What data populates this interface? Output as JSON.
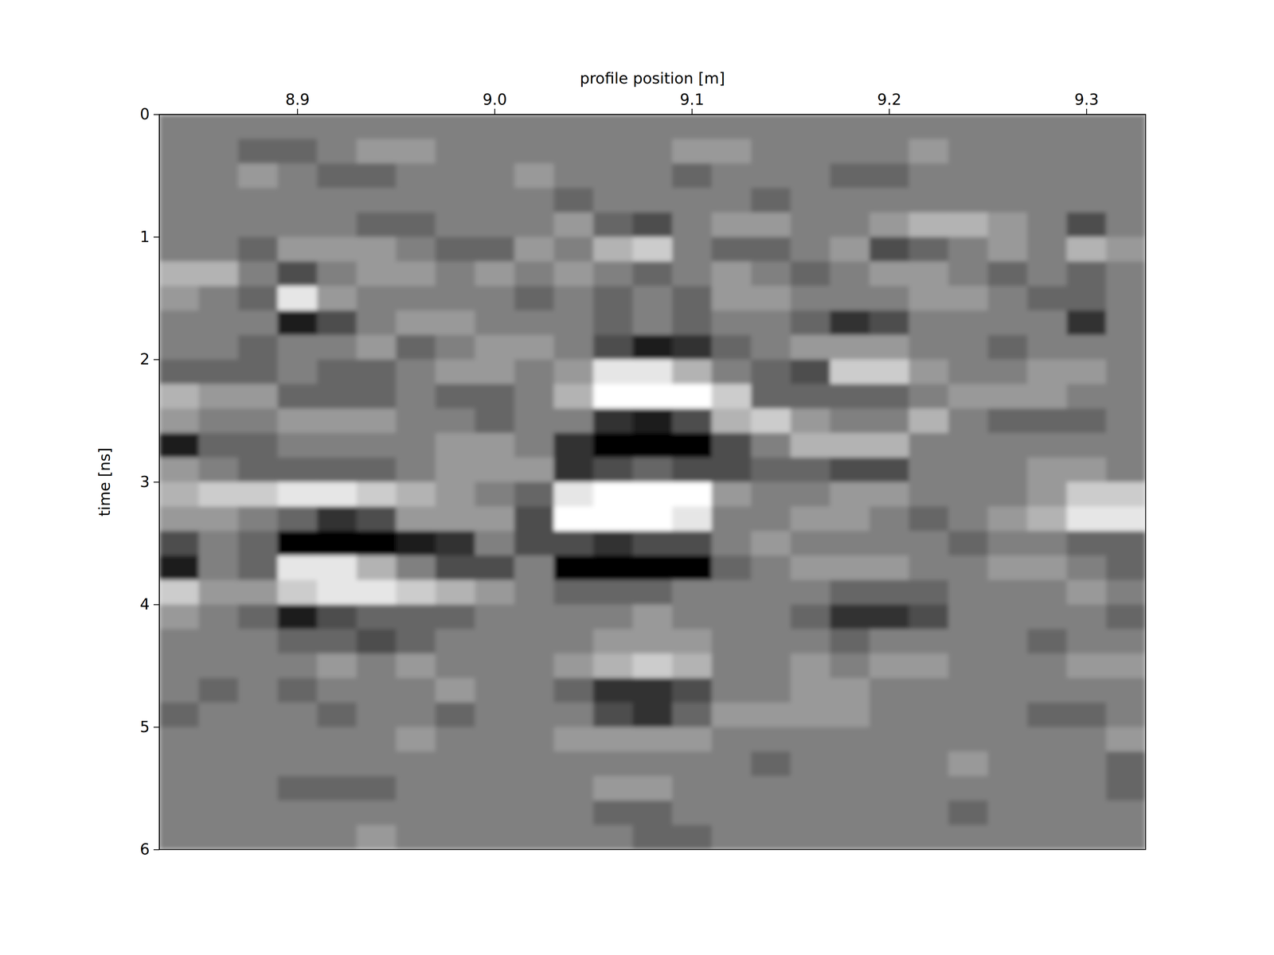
{
  "chart_data": {
    "type": "heatmap",
    "x_label": "profile position [m]",
    "y_label": "time [ns]",
    "xlim": [
      8.83,
      9.33
    ],
    "ylim": [
      0,
      6
    ],
    "xticks": [
      8.9,
      {
        "value": 9,
        "label": "9.0"
      },
      9.1,
      9.2,
      9.3
    ],
    "yticks": [
      0,
      1,
      2,
      3,
      4,
      5,
      6
    ],
    "zlim": [
      -5,
      5
    ],
    "x": [
      8.84,
      8.86,
      8.88,
      8.9,
      8.92,
      8.94,
      8.96,
      8.98,
      9.0,
      9.02,
      9.04,
      9.06,
      9.08,
      9.1,
      9.12,
      9.14,
      9.16,
      9.18,
      9.2,
      9.22,
      9.24,
      9.26,
      9.28,
      9.3,
      9.32
    ],
    "y": [
      0.1,
      0.3,
      0.5,
      0.7,
      0.9,
      1.1,
      1.3,
      1.5,
      1.7,
      1.9,
      2.1,
      2.3,
      2.5,
      2.7,
      2.9,
      3.1,
      3.3,
      3.5,
      3.7,
      3.9,
      4.1,
      4.3,
      4.5,
      4.7,
      4.9,
      5.1,
      5.3,
      5.5,
      5.7,
      5.9
    ],
    "cells": [
      [
        0,
        0,
        0,
        0,
        0,
        0,
        0,
        0,
        0,
        0,
        0,
        0,
        0,
        0,
        0,
        0,
        0,
        0,
        0,
        0,
        0,
        0,
        0,
        0,
        0
      ],
      [
        0,
        0,
        -1,
        -1,
        0,
        1,
        1,
        0,
        0,
        0,
        0,
        0,
        0,
        1,
        1,
        0,
        0,
        0,
        0,
        1,
        0,
        0,
        0,
        0,
        0
      ],
      [
        0,
        0,
        1,
        0,
        -1,
        -1,
        0,
        0,
        0,
        1,
        0,
        0,
        0,
        -1,
        0,
        0,
        0,
        -1,
        -1,
        0,
        0,
        0,
        0,
        0,
        0
      ],
      [
        0,
        0,
        0,
        0,
        0,
        0,
        0,
        0,
        0,
        0,
        -1,
        0,
        0,
        0,
        0,
        -1,
        0,
        0,
        0,
        0,
        0,
        0,
        0,
        0,
        0
      ],
      [
        0,
        0,
        0,
        0,
        0,
        -1,
        -1,
        0,
        0,
        0,
        1,
        -1,
        -2,
        0,
        1,
        1,
        0,
        0,
        1,
        2,
        2,
        1,
        0,
        -2,
        0
      ],
      [
        0,
        0,
        -1,
        1,
        1,
        1,
        0,
        -1,
        -1,
        1,
        0,
        2,
        3,
        0,
        -1,
        -1,
        0,
        1,
        -2,
        -1,
        0,
        1,
        0,
        2,
        1
      ],
      [
        2,
        2,
        0,
        -2,
        0,
        1,
        1,
        0,
        1,
        0,
        1,
        0,
        -1,
        0,
        1,
        0,
        -1,
        0,
        1,
        1,
        0,
        -1,
        0,
        -1,
        0
      ],
      [
        1,
        0,
        -1,
        4,
        1,
        0,
        0,
        0,
        0,
        -1,
        0,
        -1,
        0,
        -1,
        1,
        1,
        0,
        0,
        0,
        1,
        1,
        0,
        -1,
        -1,
        0
      ],
      [
        0,
        0,
        0,
        -4,
        -2,
        0,
        1,
        1,
        0,
        0,
        0,
        -1,
        0,
        -1,
        0,
        0,
        -1,
        -3,
        -2,
        0,
        0,
        0,
        0,
        -3,
        0
      ],
      [
        0,
        0,
        -1,
        0,
        0,
        1,
        -1,
        0,
        1,
        1,
        0,
        -2,
        -4,
        -3,
        -1,
        0,
        1,
        1,
        1,
        0,
        0,
        -1,
        0,
        0,
        0
      ],
      [
        -1,
        -1,
        -1,
        0,
        -1,
        -1,
        0,
        1,
        1,
        0,
        1,
        4,
        4,
        2,
        0,
        -1,
        -2,
        3,
        3,
        1,
        0,
        0,
        1,
        1,
        0
      ],
      [
        2,
        1,
        1,
        -1,
        -1,
        -1,
        0,
        -1,
        -1,
        0,
        2,
        5,
        5,
        5,
        3,
        -1,
        -1,
        -1,
        -1,
        0,
        1,
        1,
        1,
        0,
        0
      ],
      [
        1,
        0,
        0,
        1,
        1,
        1,
        0,
        0,
        -1,
        0,
        0,
        -3,
        -4,
        -2,
        2,
        3,
        1,
        0,
        0,
        2,
        0,
        -1,
        -1,
        -1,
        0
      ],
      [
        -4,
        -1,
        -1,
        0,
        0,
        0,
        0,
        1,
        1,
        0,
        -3,
        -5,
        -5,
        -5,
        -2,
        0,
        2,
        2,
        2,
        0,
        0,
        0,
        0,
        0,
        0
      ],
      [
        1,
        0,
        -1,
        -1,
        -1,
        -1,
        0,
        1,
        1,
        1,
        -3,
        -2,
        -1,
        -2,
        -2,
        -1,
        -1,
        -2,
        -2,
        0,
        0,
        0,
        1,
        1,
        0
      ],
      [
        2,
        3,
        3,
        4,
        4,
        3,
        2,
        1,
        0,
        -1,
        4,
        5,
        5,
        5,
        1,
        0,
        0,
        1,
        1,
        0,
        0,
        0,
        1,
        3,
        3
      ],
      [
        1,
        1,
        0,
        -1,
        -3,
        -2,
        1,
        1,
        1,
        -2,
        5,
        5,
        5,
        4,
        0,
        0,
        1,
        1,
        0,
        -1,
        0,
        1,
        2,
        4,
        4
      ],
      [
        -2,
        0,
        -1,
        -5,
        -5,
        -5,
        -4,
        -3,
        0,
        -2,
        -2,
        -3,
        -2,
        -2,
        0,
        1,
        0,
        0,
        0,
        0,
        -1,
        0,
        0,
        -1,
        -1
      ],
      [
        -4,
        0,
        -1,
        4,
        4,
        2,
        0,
        -2,
        -2,
        0,
        -5,
        -5,
        -5,
        -5,
        -1,
        0,
        1,
        1,
        1,
        0,
        0,
        1,
        1,
        0,
        -1
      ],
      [
        3,
        1,
        1,
        3,
        4,
        4,
        3,
        2,
        1,
        0,
        -1,
        -1,
        -1,
        0,
        0,
        0,
        0,
        -1,
        -1,
        -1,
        0,
        0,
        0,
        1,
        0
      ],
      [
        1,
        0,
        -1,
        -4,
        -2,
        -1,
        -1,
        -1,
        0,
        0,
        0,
        0,
        1,
        0,
        0,
        0,
        -1,
        -3,
        -3,
        -2,
        0,
        0,
        0,
        0,
        -1
      ],
      [
        0,
        0,
        0,
        -1,
        -1,
        -2,
        -1,
        0,
        0,
        0,
        0,
        1,
        1,
        1,
        0,
        0,
        0,
        -1,
        0,
        0,
        0,
        0,
        -1,
        0,
        0
      ],
      [
        0,
        0,
        0,
        0,
        1,
        0,
        1,
        0,
        0,
        0,
        1,
        2,
        3,
        2,
        0,
        0,
        1,
        0,
        1,
        1,
        0,
        0,
        0,
        1,
        1
      ],
      [
        0,
        -1,
        0,
        -1,
        0,
        0,
        0,
        1,
        0,
        0,
        -1,
        -3,
        -3,
        -2,
        0,
        0,
        1,
        1,
        0,
        0,
        0,
        0,
        0,
        0,
        0
      ],
      [
        -1,
        0,
        0,
        0,
        -1,
        0,
        0,
        -1,
        0,
        0,
        0,
        -2,
        -3,
        -1,
        1,
        1,
        1,
        1,
        0,
        0,
        0,
        0,
        -1,
        -1,
        0
      ],
      [
        0,
        0,
        0,
        0,
        0,
        0,
        1,
        0,
        0,
        0,
        1,
        1,
        1,
        1,
        0,
        0,
        0,
        0,
        0,
        0,
        0,
        0,
        0,
        0,
        1
      ],
      [
        0,
        0,
        0,
        0,
        0,
        0,
        0,
        0,
        0,
        0,
        0,
        0,
        0,
        0,
        0,
        -1,
        0,
        0,
        0,
        0,
        1,
        0,
        0,
        0,
        -1
      ],
      [
        0,
        0,
        0,
        -1,
        -1,
        -1,
        0,
        0,
        0,
        0,
        0,
        1,
        1,
        0,
        0,
        0,
        0,
        0,
        0,
        0,
        0,
        0,
        0,
        0,
        -1
      ],
      [
        0,
        0,
        0,
        0,
        0,
        0,
        0,
        0,
        0,
        0,
        0,
        -1,
        -1,
        0,
        0,
        0,
        0,
        0,
        0,
        0,
        -1,
        0,
        0,
        0,
        0
      ],
      [
        0,
        0,
        0,
        0,
        0,
        1,
        0,
        0,
        0,
        0,
        0,
        0,
        -1,
        -1,
        0,
        0,
        0,
        0,
        0,
        0,
        0,
        0,
        0,
        0,
        0
      ]
    ]
  }
}
